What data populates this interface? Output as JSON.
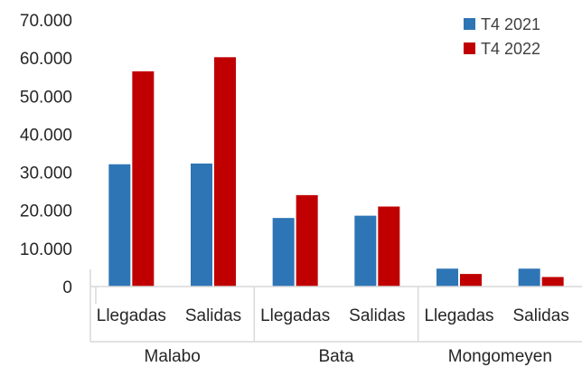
{
  "chart_data": {
    "type": "bar",
    "title": "",
    "xlabel": "",
    "ylabel": "",
    "ylim": [
      0,
      70000
    ],
    "yticks": [
      "0",
      "10.000",
      "20.000",
      "30.000",
      "40.000",
      "50.000",
      "60.000",
      "70.000"
    ],
    "grid": false,
    "legend_position": "top-right",
    "groups": [
      "Malabo",
      "Bata",
      "Mongomeyen"
    ],
    "categories": [
      "Llegadas",
      "Salidas",
      "Llegadas",
      "Salidas",
      "Llegadas",
      "Salidas"
    ],
    "series": [
      {
        "name": "T4 2021",
        "color": "#2e75b6",
        "values": [
          32100,
          32300,
          18000,
          18600,
          4700,
          4700
        ]
      },
      {
        "name": "T4 2022",
        "color": "#c00000",
        "values": [
          56500,
          60200,
          24000,
          21000,
          3300,
          2500
        ]
      }
    ]
  }
}
